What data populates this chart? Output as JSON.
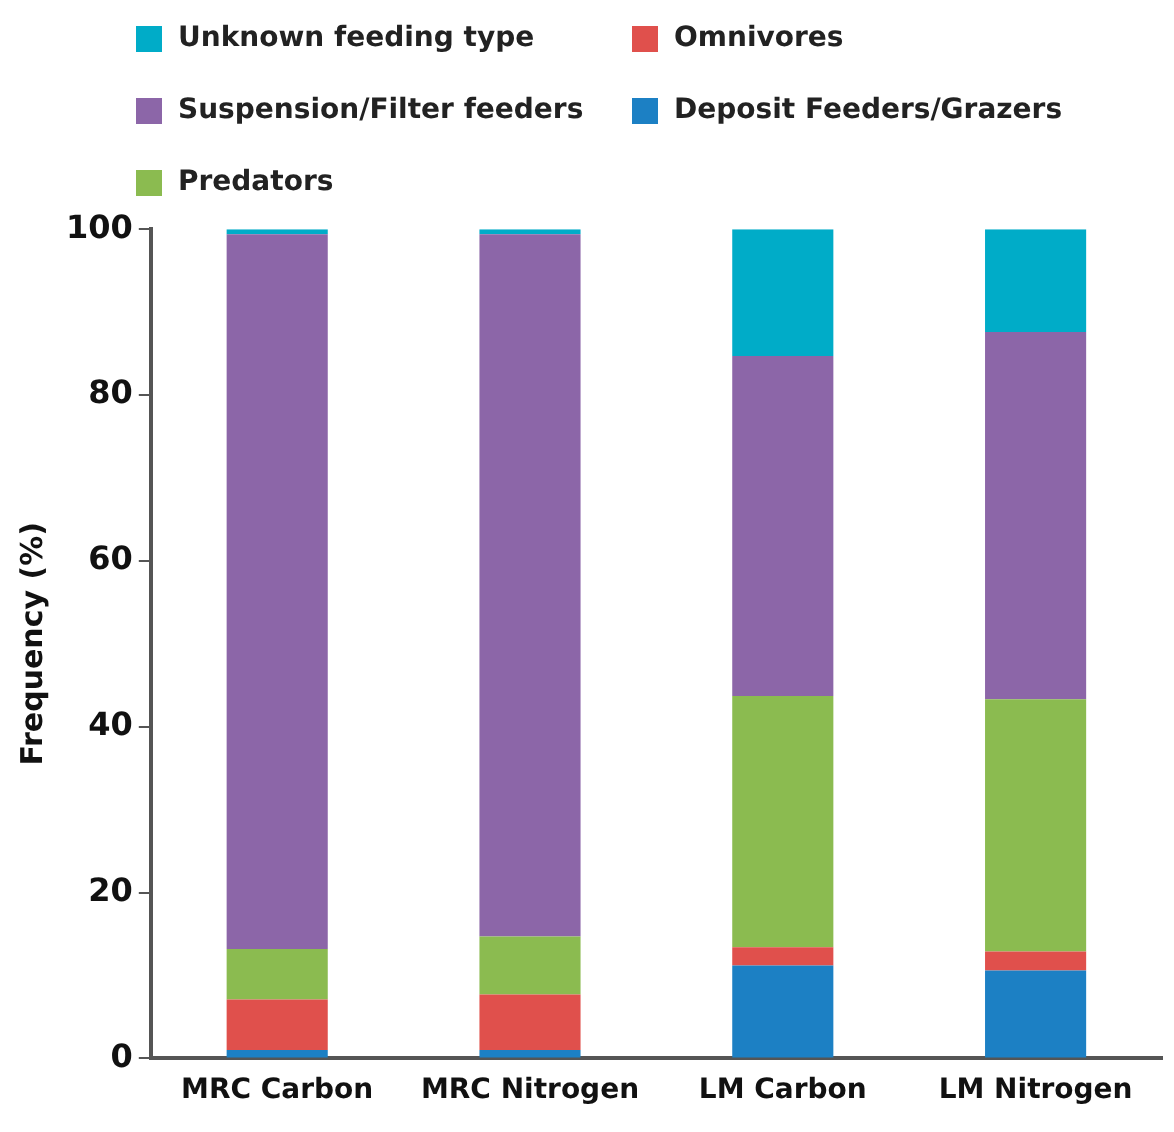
{
  "chart_data": {
    "type": "bar",
    "stacked": true,
    "ylabel": "Frequency (%)",
    "categories": [
      "MRC Carbon",
      "MRC Nitrogen",
      "LM Carbon",
      "LM Nitrogen"
    ],
    "series": [
      {
        "name": "Deposit Feeders/Grazers",
        "color": "#1c80c4",
        "values": [
          1,
          1,
          11.2,
          10.6
        ]
      },
      {
        "name": "Omnivores",
        "color": "#e0504c",
        "values": [
          6.1,
          6.7,
          2.2,
          2.3
        ]
      },
      {
        "name": "Predators",
        "color": "#8bbb50",
        "values": [
          6.1,
          7,
          30.3,
          30.4
        ]
      },
      {
        "name": "Suspension/Filter feeders",
        "color": "#8c66a8",
        "values": [
          86.2,
          84.7,
          41,
          44.3
        ]
      },
      {
        "name": "Unknown feeding type",
        "color": "#00acc8",
        "values": [
          0.6,
          0.6,
          15.3,
          12.4
        ]
      }
    ],
    "ylim": [
      0,
      100
    ],
    "yticks": [
      0,
      20,
      40,
      60,
      80,
      100
    ],
    "grid": false,
    "legend": "top"
  }
}
